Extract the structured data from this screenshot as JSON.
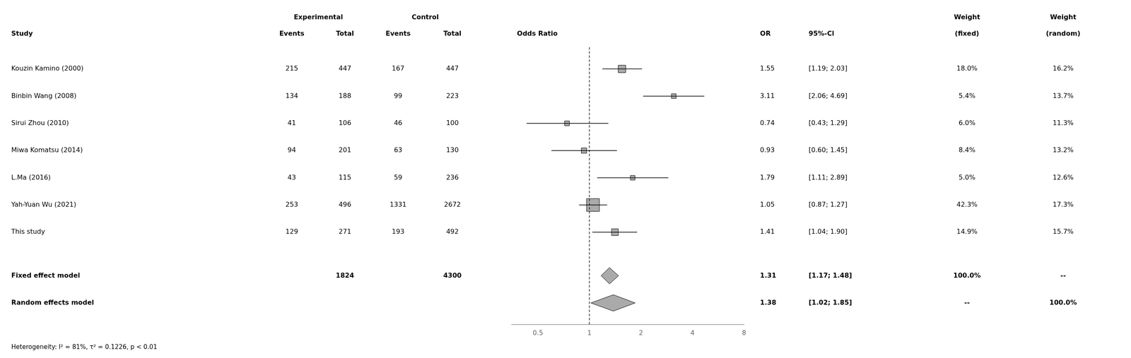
{
  "chart_data": {
    "type": "forest",
    "log": "x",
    "xlim": [
      0.35,
      8
    ],
    "xticks": [
      0.5,
      1,
      2,
      4,
      8
    ],
    "reference_line": 1,
    "grid": false,
    "tick_labels": "x",
    "color": "#aaaaaa",
    "plot_header": "Odds Ratio",
    "columns": [
      {
        "header": "Study"
      },
      {
        "group": "Experimental",
        "header": "Events"
      },
      {
        "group": "Experimental",
        "header": "Total"
      },
      {
        "group": "Control",
        "header": "Events"
      },
      {
        "group": "Control",
        "header": "Total"
      },
      {
        "header": "OR"
      },
      {
        "header": "95%-Cl"
      },
      {
        "header": [
          "Weight",
          "(fixed)"
        ]
      },
      {
        "header": [
          "Weight",
          "(random)"
        ]
      }
    ],
    "categories": [
      "Kouzin Kamino (2000)",
      "Binbin Wang (2008)",
      "Sirui Zhou (2010)",
      "Miwa Komatsu (2014)",
      "L.Ma (2016)",
      "Yah-Yuan Wu (2021)",
      "This study"
    ],
    "exp_events": [
      215,
      134,
      41,
      94,
      43,
      253,
      129
    ],
    "exp_total": [
      447,
      188,
      106,
      201,
      115,
      496,
      271
    ],
    "ctrl_events": [
      167,
      99,
      46,
      63,
      59,
      1331,
      193
    ],
    "ctrl_total": [
      447,
      223,
      100,
      130,
      236,
      2672,
      492
    ],
    "values": [
      1.55,
      3.11,
      0.74,
      0.93,
      1.79,
      1.05,
      1.41
    ],
    "value_labels": [
      "1.55",
      "3.11",
      "0.74",
      "0.93",
      "1.79",
      "1.05",
      "1.41"
    ],
    "ci_low": [
      1.19,
      2.06,
      0.43,
      0.6,
      1.11,
      0.87,
      1.04
    ],
    "ci_high": [
      2.03,
      4.69,
      1.29,
      1.45,
      2.89,
      1.27,
      1.9
    ],
    "ci_labels": [
      "[1.19; 2.03]",
      "[2.06; 4.69]",
      "[0.43; 1.29]",
      "[0.60; 1.45]",
      "[1.11; 2.89]",
      "[0.87; 1.27]",
      "[1.04; 1.90]"
    ],
    "weights": [
      18.0,
      5.4,
      6.0,
      8.4,
      5.0,
      42.3,
      14.9
    ],
    "weight_fixed_labels": [
      "18.0%",
      "5.4%",
      "6.0%",
      "8.4%",
      "5.0%",
      "42.3%",
      "14.9%"
    ],
    "weight_random_labels": [
      "16.2%",
      "13.7%",
      "11.3%",
      "13.2%",
      "12.6%",
      "17.3%",
      "15.7%"
    ],
    "summaries": [
      {
        "name": "Fixed effect model",
        "exp_total": 1824,
        "ctrl_total": 4300,
        "value": 1.31,
        "value_label": "1.31",
        "ci_low": 1.17,
        "ci_high": 1.48,
        "ci_label": "[1.17; 1.48]",
        "weight_fixed_label": "100.0%",
        "weight_random_label": "--"
      },
      {
        "name": "Random effects model",
        "value": 1.38,
        "value_label": "1.38",
        "ci_low": 1.02,
        "ci_high": 1.85,
        "ci_label": "[1.02; 1.85]",
        "weight_fixed_label": "--",
        "weight_random_label": "100.0%"
      }
    ],
    "annotation": "Heterogeneity: I² = 81%, τ² = 0.1226, p < 0.01"
  }
}
